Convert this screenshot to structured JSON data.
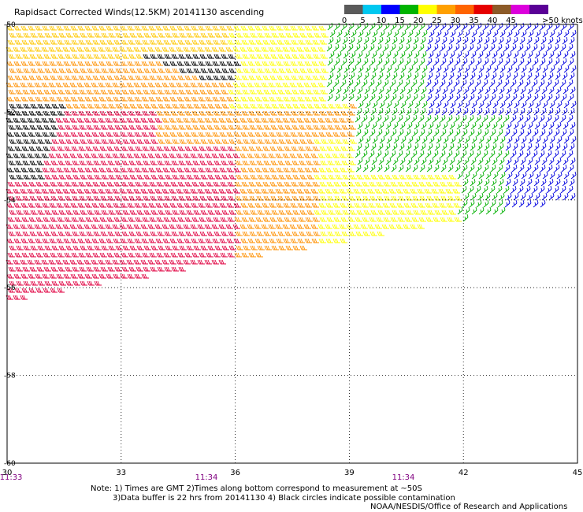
{
  "title": "Rapidsact Corrected Winds(12.5KM) 20141130 ascending",
  "legend": {
    "unit_label": ">50 knots",
    "tick_labels": [
      "0",
      "5",
      "10",
      "15",
      "20",
      "25",
      "30",
      "35",
      "40",
      "45"
    ],
    "bins": [
      {
        "from": 0,
        "to": 5,
        "color": "#5a5a5a"
      },
      {
        "from": 5,
        "to": 10,
        "color": "#00c8f0"
      },
      {
        "from": 10,
        "to": 15,
        "color": "#0000ff"
      },
      {
        "from": 15,
        "to": 20,
        "color": "#00b400"
      },
      {
        "from": 20,
        "to": 25,
        "color": "#ffff00"
      },
      {
        "from": 25,
        "to": 30,
        "color": "#ffa000"
      },
      {
        "from": 30,
        "to": 35,
        "color": "#ff6400"
      },
      {
        "from": 35,
        "to": 40,
        "color": "#e60000"
      },
      {
        "from": 40,
        "to": 45,
        "color": "#8c5a28"
      },
      {
        "from": 45,
        "to": 50,
        "color": "#dc00dc"
      },
      {
        "from": 50,
        "to": null,
        "color": "#5a0096"
      }
    ]
  },
  "map": {
    "lon_range": [
      30,
      45
    ],
    "lat_range": [
      -60,
      -50
    ],
    "lon_ticks": [
      "30",
      "33",
      "36",
      "39",
      "42",
      "45"
    ],
    "lat_ticks": [
      "-50",
      "-52",
      "-54",
      "-56",
      "-58",
      "-60"
    ],
    "grid": "dotted"
  },
  "swath_times": [
    "11:33",
    "11:34",
    "11:34"
  ],
  "notes": {
    "line1": "Note: 1) Times are GMT 2)Times along bottom correspond to measurement at ~50S",
    "line2": "3)Data buffer is 22 hrs from 20141130 4) Black circles indicate possible contamination",
    "credit": "NOAA/NESDIS/Office of Research and Applications"
  },
  "wind_zones": [
    {
      "name": "black",
      "color": "#000000"
    },
    {
      "name": "orange",
      "color": "#ff9000"
    },
    {
      "name": "gold",
      "color": "#ffc800"
    },
    {
      "name": "red",
      "color": "#e00040"
    },
    {
      "name": "yellow",
      "color": "#ffff00"
    },
    {
      "name": "green",
      "color": "#00b000"
    },
    {
      "name": "blue",
      "color": "#0000e0"
    }
  ]
}
